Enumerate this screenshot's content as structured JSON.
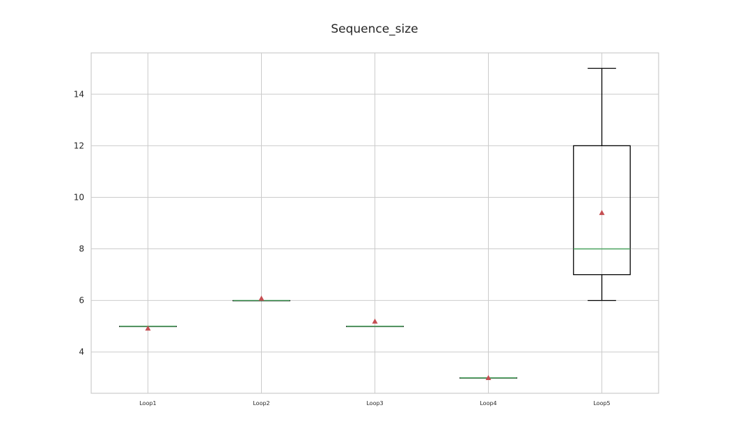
{
  "chart_data": {
    "type": "box",
    "title": "Sequence_size",
    "xlabel": "",
    "ylabel": "",
    "ylim": [
      2.4,
      15.6
    ],
    "yticks": [
      "4",
      "6",
      "8",
      "10",
      "12",
      "14"
    ],
    "grid": true,
    "categories": [
      "Loop1",
      "Loop2",
      "Loop3",
      "Loop4",
      "Loop5"
    ],
    "boxes": [
      {
        "whisker_low": 5,
        "q1": 5,
        "median": 5,
        "q3": 5,
        "whisker_high": 5,
        "mean": 4.92
      },
      {
        "whisker_low": 6,
        "q1": 6,
        "median": 6,
        "q3": 6,
        "whisker_high": 6,
        "mean": 6.08
      },
      {
        "whisker_low": 5,
        "q1": 5,
        "median": 5,
        "q3": 5,
        "whisker_high": 5,
        "mean": 5.19
      },
      {
        "whisker_low": 3,
        "q1": 3,
        "median": 3,
        "q3": 3,
        "whisker_high": 3,
        "mean": 3.0
      },
      {
        "whisker_low": 6,
        "q1": 7,
        "median": 8,
        "q3": 12,
        "whisker_high": 15,
        "mean": 9.4
      }
    ],
    "colors": {
      "box": "#000000",
      "median": "#55a868",
      "mean_marker": "#c44e52",
      "grid": "#cbcbcb",
      "frame": "#cbcbcb"
    }
  }
}
